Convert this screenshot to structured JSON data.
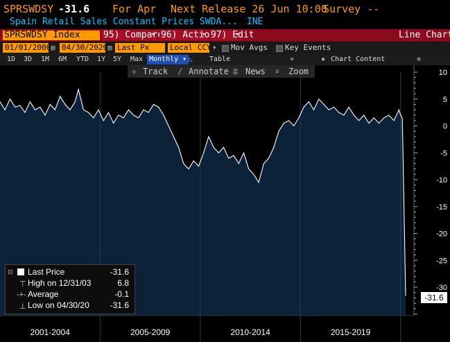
{
  "header": {
    "ticker": "SPRSWDSY",
    "last_value": "-31.6",
    "period": "For Apr",
    "next_release": "Next Release 26 Jun 10:00",
    "survey": "Survey --",
    "title": "Spain Retail Sales Constant Prices SWDA...",
    "source": "INE"
  },
  "toolbar": {
    "security": "SPRSWDSY Index",
    "compare": "95) Compare",
    "actions": "96) Actions",
    "edit": "97) Edit",
    "chart_type": "Line Chart"
  },
  "controls": {
    "start_date": "01/01/2000",
    "end_date": "04/30/2020",
    "field": "Last Px",
    "currency": "Local CCY",
    "mov_avgs": "Mov Avgs",
    "key_events": "Key Events"
  },
  "periods": {
    "buttons": [
      "1D",
      "3D",
      "1M",
      "6M",
      "YTD",
      "1Y",
      "5Y",
      "Max"
    ],
    "frequency": "Monthly",
    "table": "Table",
    "chart_content": "Chart Content"
  },
  "tools": {
    "track": "Track",
    "annotate": "Annotate",
    "news": "News",
    "zoom": "Zoom"
  },
  "legend": {
    "last_price_label": "Last Price",
    "last_price_value": "-31.6",
    "high_label": "High on 12/31/03",
    "high_value": "6.8",
    "average_label": "Average",
    "average_value": "-0.1",
    "low_label": "Low on 04/30/20",
    "low_value": "-31.6"
  },
  "last_tag": "-31.6",
  "colors": {
    "header_orange": "#ff9b00",
    "subtitle_cyan": "#00c8ff",
    "toolbar_red": "#8b0a1e",
    "plot_fill": "#0c2238",
    "line": "#ffffff"
  },
  "chart_data": {
    "type": "area",
    "series": [
      {
        "name": "Last Price",
        "x": [
          "2000-01",
          "2000-04",
          "2000-07",
          "2000-10",
          "2001-01",
          "2001-04",
          "2001-07",
          "2001-10",
          "2002-01",
          "2002-04",
          "2002-07",
          "2002-10",
          "2003-01",
          "2003-04",
          "2003-07",
          "2003-10",
          "2003-12",
          "2004-03",
          "2004-06",
          "2004-09",
          "2004-12",
          "2005-03",
          "2005-06",
          "2005-09",
          "2005-12",
          "2006-03",
          "2006-06",
          "2006-09",
          "2006-12",
          "2007-03",
          "2007-06",
          "2007-09",
          "2007-12",
          "2008-03",
          "2008-06",
          "2008-09",
          "2008-12",
          "2009-03",
          "2009-06",
          "2009-09",
          "2009-12",
          "2010-03",
          "2010-06",
          "2010-09",
          "2010-12",
          "2011-03",
          "2011-06",
          "2011-09",
          "2011-12",
          "2012-03",
          "2012-06",
          "2012-09",
          "2012-12",
          "2013-03",
          "2013-06",
          "2013-09",
          "2013-12",
          "2014-03",
          "2014-06",
          "2014-09",
          "2014-12",
          "2015-03",
          "2015-06",
          "2015-09",
          "2015-12",
          "2016-03",
          "2016-06",
          "2016-09",
          "2016-12",
          "2017-03",
          "2017-06",
          "2017-09",
          "2017-12",
          "2018-03",
          "2018-06",
          "2018-09",
          "2018-12",
          "2019-03",
          "2019-06",
          "2019-09",
          "2019-12",
          "2020-01",
          "2020-02",
          "2020-03",
          "2020-04"
        ],
        "values": [
          4.5,
          3.0,
          5.0,
          3.5,
          3.8,
          2.5,
          4.5,
          3.0,
          3.5,
          2.0,
          4.0,
          3.0,
          5.5,
          4.0,
          3.0,
          4.5,
          6.8,
          3.0,
          2.5,
          1.5,
          3.0,
          1.0,
          2.5,
          0.5,
          2.0,
          1.5,
          3.0,
          2.0,
          1.5,
          3.0,
          2.5,
          4.0,
          3.5,
          2.0,
          0.0,
          -2.0,
          -4.0,
          -7.0,
          -8.0,
          -6.5,
          -7.5,
          -5.0,
          -2.0,
          -4.0,
          -5.0,
          -4.0,
          -6.0,
          -5.5,
          -7.0,
          -5.0,
          -8.0,
          -9.0,
          -10.5,
          -7.0,
          -6.0,
          -4.0,
          -1.0,
          0.5,
          1.0,
          0.0,
          1.5,
          3.5,
          4.5,
          3.0,
          5.0,
          4.0,
          3.0,
          3.5,
          2.5,
          2.0,
          3.5,
          2.0,
          1.0,
          2.0,
          0.5,
          1.5,
          0.5,
          1.5,
          2.0,
          1.0,
          3.0,
          2.0,
          1.5,
          -14.4,
          -31.6
        ]
      }
    ],
    "ylim": [
      -35,
      10
    ],
    "yticks": [
      10,
      5,
      0,
      -5,
      -10,
      -15,
      -20,
      -25,
      -30
    ],
    "x_period_labels": [
      "2001-2004",
      "2005-2009",
      "2010-2014",
      "2015-2019"
    ],
    "grid": false
  }
}
